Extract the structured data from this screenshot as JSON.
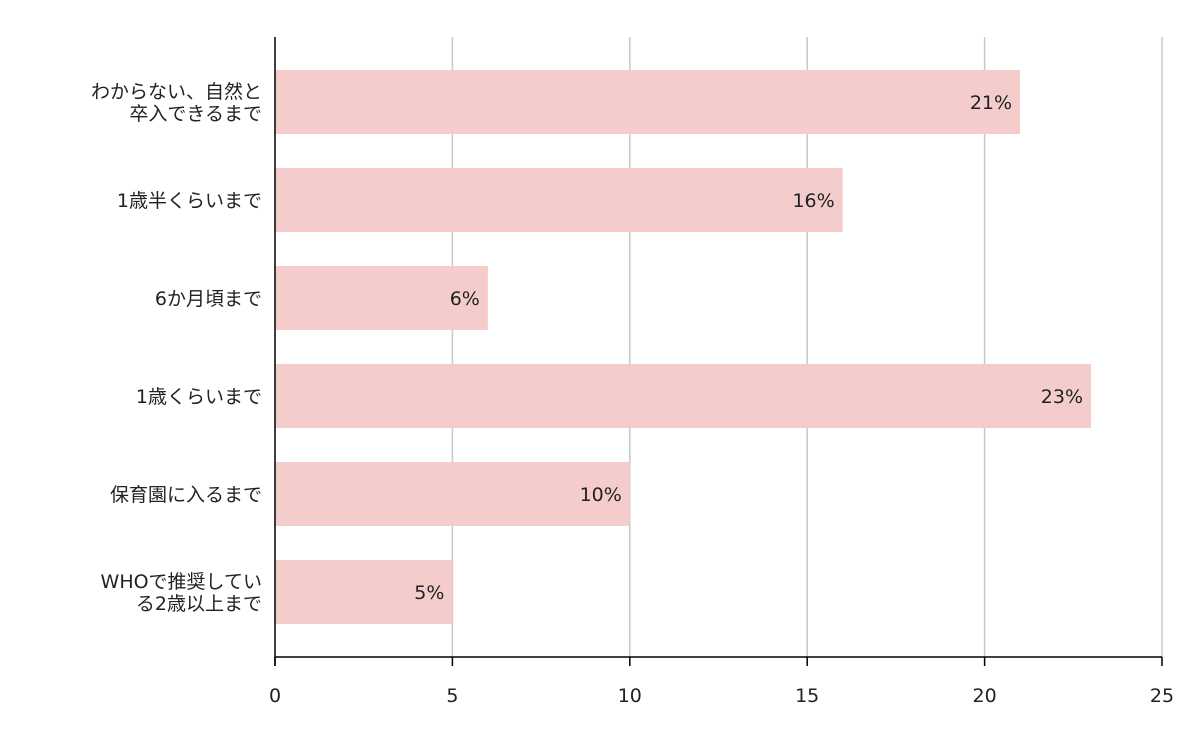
{
  "chart_data": {
    "type": "bar",
    "orientation": "horizontal",
    "categories": [
      "わからない、自然と卒入できるまで",
      "1歳半くらいまで",
      "6か月頃まで",
      "1歳くらいまで",
      "保育園に入るまで",
      "WHOで推奨している2歳以上まで"
    ],
    "category_label_lines": [
      [
        "わからない、自然と",
        "卒入できるまで"
      ],
      [
        "1歳半くらいまで"
      ],
      [
        "6か月頃まで"
      ],
      [
        "1歳くらいまで"
      ],
      [
        "保育園に入るまで"
      ],
      [
        "WHOで推奨してい",
        "る2歳以上まで"
      ]
    ],
    "values": [
      21,
      16,
      6,
      23,
      10,
      5
    ],
    "data_labels": [
      "21%",
      "16%",
      "6%",
      "23%",
      "10%",
      "5%"
    ],
    "xlim": [
      0,
      25
    ],
    "x_ticks": [
      0,
      5,
      10,
      15,
      20,
      25
    ],
    "x_tick_labels": [
      "0",
      "5",
      "10",
      "15",
      "20",
      "25"
    ],
    "grid": true,
    "legend": "none",
    "colors": {
      "bar": "#f4cccc",
      "grid": "#c8c8c8",
      "axis": "#000000",
      "text": "#222222"
    }
  }
}
